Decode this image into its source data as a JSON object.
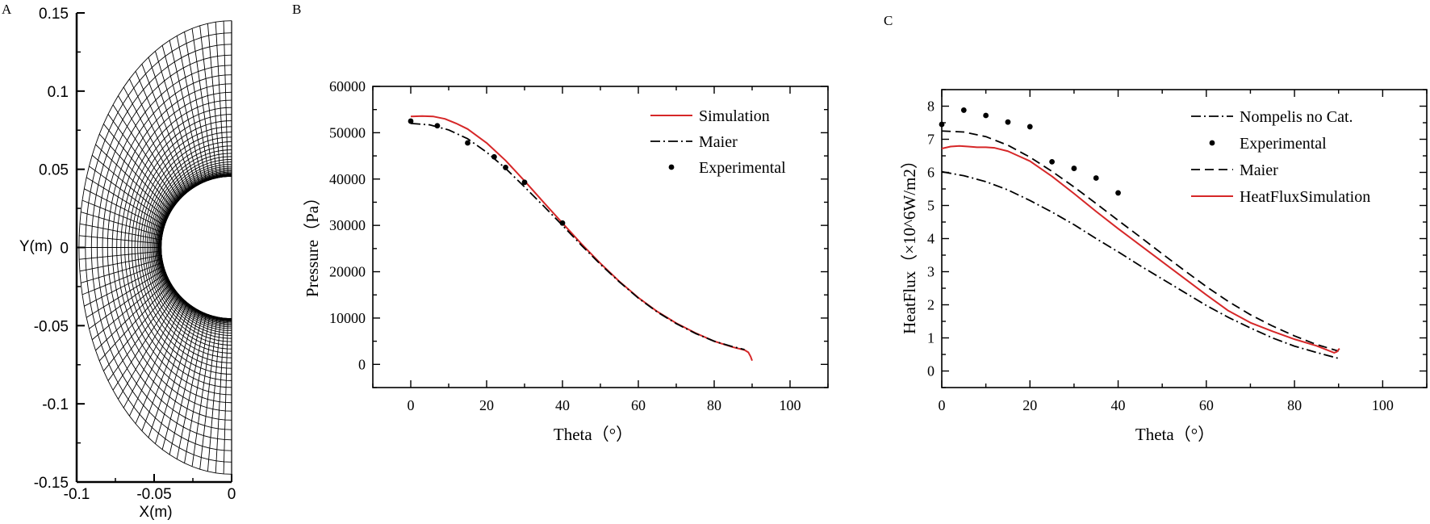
{
  "panels": {
    "a": {
      "letter": "A"
    },
    "b": {
      "letter": "B"
    },
    "c": {
      "letter": "C"
    }
  },
  "chart_data": [
    {
      "type": "mesh",
      "panel": "A",
      "title": "",
      "xlabel": "X(m)",
      "ylabel": "Y(m)",
      "xlim": [
        -0.1,
        0
      ],
      "ylim": [
        -0.15,
        0.15
      ],
      "xticks": [
        -0.1,
        -0.05,
        0
      ],
      "xtick_labels": [
        "-0.1",
        "-0.05",
        "0"
      ],
      "yticks": [
        -0.15,
        -0.1,
        -0.05,
        0,
        0.05,
        0.1,
        0.15
      ],
      "ytick_labels": [
        "-0.15",
        "-0.1",
        "-0.05",
        "0",
        "0.05",
        "0.1",
        "0.15"
      ],
      "body_radius": 0.0455,
      "outer_boundary": {
        "nose_x": -0.0985,
        "end_y": 0.145
      },
      "grid": {
        "radial_cells": 40,
        "angular_cells": 60
      },
      "grid_visible": false
    },
    {
      "type": "line",
      "panel": "B",
      "title": "",
      "xlabel": "Theta（°）",
      "ylabel": "Pressure（Pa）",
      "xlim": [
        -10,
        110
      ],
      "ylim": [
        -5000,
        60000
      ],
      "xticks": [
        0,
        20,
        40,
        60,
        80,
        100
      ],
      "yticks": [
        0,
        10000,
        20000,
        30000,
        40000,
        50000,
        60000
      ],
      "legend_position": "top-right",
      "grid": false,
      "series": [
        {
          "name": "Simulation",
          "style": "solid",
          "color": "#d62728",
          "x": [
            0,
            3,
            6,
            9,
            12,
            15,
            20,
            25,
            30,
            35,
            40,
            45,
            50,
            55,
            60,
            65,
            70,
            75,
            80,
            85,
            88,
            89,
            89.6,
            90
          ],
          "y": [
            53500,
            53600,
            53500,
            53000,
            52000,
            50800,
            47800,
            44000,
            39600,
            35000,
            30500,
            26000,
            21800,
            17900,
            14400,
            11400,
            8900,
            6800,
            5000,
            3700,
            3100,
            2600,
            1700,
            800
          ]
        },
        {
          "name": "Maier",
          "style": "dashdot",
          "color": "#000000",
          "x": [
            0,
            5,
            10,
            15,
            20,
            25,
            30,
            35,
            40,
            45,
            50,
            55,
            60,
            65,
            70,
            75,
            80,
            85,
            88
          ],
          "y": [
            52000,
            51700,
            50600,
            48700,
            45800,
            42300,
            38300,
            34200,
            30000,
            25700,
            21600,
            17800,
            14300,
            11300,
            8800,
            6700,
            5000,
            3800,
            3200
          ]
        },
        {
          "name": "Experimental",
          "style": "markers",
          "color": "#000000",
          "x": [
            0,
            7,
            15,
            22,
            25,
            30,
            40
          ],
          "y": [
            52500,
            51500,
            47800,
            44800,
            42500,
            39300,
            30500
          ]
        }
      ]
    },
    {
      "type": "line",
      "panel": "C",
      "title": "",
      "xlabel": "Theta（°）",
      "ylabel": "HeatFlux（×10^6W/m2）",
      "xlim": [
        0,
        110
      ],
      "ylim": [
        -0.5,
        8.5
      ],
      "xticks": [
        0,
        20,
        40,
        60,
        80,
        100
      ],
      "yticks": [
        0,
        1,
        2,
        3,
        4,
        5,
        6,
        7,
        8
      ],
      "legend_position": "top-right",
      "grid": false,
      "series": [
        {
          "name": "Nompelis no Cat.",
          "style": "dashdot",
          "color": "#000000",
          "x": [
            0,
            5,
            10,
            15,
            20,
            25,
            30,
            35,
            40,
            45,
            50,
            55,
            60,
            65,
            70,
            75,
            80,
            85,
            90
          ],
          "y": [
            6.02,
            5.9,
            5.72,
            5.47,
            5.15,
            4.8,
            4.42,
            4.0,
            3.6,
            3.18,
            2.78,
            2.38,
            1.98,
            1.62,
            1.3,
            1.0,
            0.75,
            0.56,
            0.38
          ]
        },
        {
          "name": "Experimental",
          "style": "markers",
          "color": "#000000",
          "x": [
            0,
            5,
            10,
            15,
            20,
            25,
            30,
            35,
            40
          ],
          "y": [
            7.45,
            7.88,
            7.72,
            7.52,
            7.38,
            6.32,
            6.12,
            5.83,
            5.38
          ]
        },
        {
          "name": "Maier",
          "style": "dashed",
          "color": "#000000",
          "x": [
            0,
            5,
            10,
            15,
            20,
            25,
            30,
            35,
            40,
            45,
            50,
            55,
            60,
            65,
            70,
            75,
            80,
            85,
            90
          ],
          "y": [
            7.25,
            7.22,
            7.08,
            6.82,
            6.46,
            6.03,
            5.56,
            5.06,
            4.55,
            4.05,
            3.54,
            3.04,
            2.55,
            2.1,
            1.7,
            1.36,
            1.06,
            0.8,
            0.6
          ]
        },
        {
          "name": "HeatFluxSimulation",
          "style": "solid",
          "color": "#d62728",
          "x": [
            0,
            2,
            4,
            6,
            8,
            10,
            12,
            15,
            20,
            25,
            30,
            35,
            40,
            45,
            50,
            55,
            60,
            65,
            70,
            75,
            80,
            85,
            89,
            89.6,
            90.2
          ],
          "y": [
            6.72,
            6.78,
            6.8,
            6.78,
            6.76,
            6.76,
            6.74,
            6.64,
            6.34,
            5.88,
            5.36,
            4.82,
            4.3,
            3.8,
            3.3,
            2.8,
            2.3,
            1.82,
            1.46,
            1.2,
            0.96,
            0.76,
            0.55,
            0.58,
            0.68
          ]
        }
      ]
    }
  ]
}
